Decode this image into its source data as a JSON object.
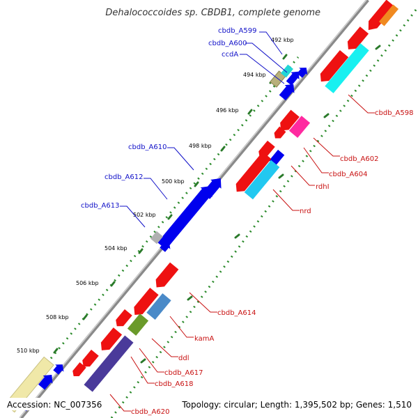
{
  "title": "Dehalococcoides sp. CBDB1, complete genome",
  "footer": {
    "accession": "Accession: NC_007356",
    "topology": "Topology: circular; Length: 1,395,502 bp; Genes: 1,510"
  },
  "scale_labels": [
    "492 kbp",
    "494 kbp",
    "496 kbp",
    "498 kbp",
    "500 kbp",
    "502 kbp",
    "504 kbp",
    "506 kbp",
    "508 kbp",
    "510 kbp"
  ],
  "left_labels": [
    "cbdb_A599",
    "cbdb_A600",
    "ccdA",
    "cbdb_A610",
    "cbdb_A612",
    "cbdb_A613"
  ],
  "right_labels": [
    "cbdb_A598",
    "cbdb_A602",
    "cbdb_A604",
    "rdhI",
    "nrd",
    "cbdb_A614",
    "kamA",
    "ddl",
    "cbdb_A617",
    "cbdb_A618",
    "cbdb_A620"
  ],
  "colors": {
    "forward": "#0000ee",
    "reverse": "#ee1111",
    "backbone": "#888888",
    "tick": "#2a8a2a",
    "label_forward": "#1010c8",
    "label_reverse": "#c81010"
  }
}
